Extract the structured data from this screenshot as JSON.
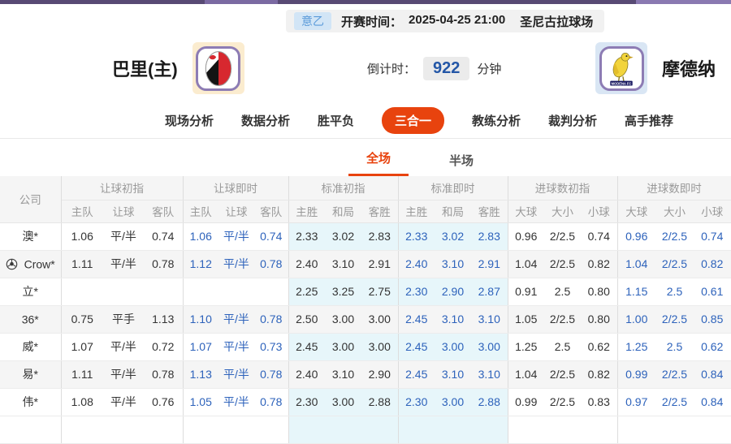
{
  "top": {
    "league": "意乙",
    "kickoff_label": "开赛时间：",
    "kickoff_time": "2025-04-25 21:00",
    "venue": "圣尼古拉球场"
  },
  "match": {
    "home_name": "巴里(主)",
    "away_name": "摩德纳",
    "countdown_label": "倒计时：",
    "countdown_value": "922",
    "countdown_unit": "分钟"
  },
  "nav": {
    "items": [
      {
        "label": "现场分析",
        "active": false
      },
      {
        "label": "数据分析",
        "active": false
      },
      {
        "label": "胜平负",
        "active": false
      },
      {
        "label": "三合一",
        "active": true
      },
      {
        "label": "教练分析",
        "active": false
      },
      {
        "label": "裁判分析",
        "active": false
      },
      {
        "label": "高手推荐",
        "active": false
      }
    ]
  },
  "subtabs": {
    "items": [
      {
        "label": "全场",
        "active": true
      },
      {
        "label": "半场",
        "active": false
      }
    ]
  },
  "table": {
    "company_header": "公司",
    "groups": [
      {
        "label": "让球初指",
        "cols": [
          "主队",
          "让球",
          "客队"
        ]
      },
      {
        "label": "让球即时",
        "cols": [
          "主队",
          "让球",
          "客队"
        ]
      },
      {
        "label": "标准初指",
        "cols": [
          "主胜",
          "和局",
          "客胜"
        ]
      },
      {
        "label": "标准即时",
        "cols": [
          "主胜",
          "和局",
          "客胜"
        ]
      },
      {
        "label": "进球数初指",
        "cols": [
          "大球",
          "大小",
          "小球"
        ]
      },
      {
        "label": "进球数即时",
        "cols": [
          "大球",
          "大小",
          "小球"
        ]
      }
    ],
    "rows": [
      {
        "company": "澳*",
        "has_ball_icon": false,
        "cells": [
          [
            "1.06",
            "平/半",
            "0.74"
          ],
          [
            "1.06",
            "平/半",
            "0.74"
          ],
          [
            "2.33",
            "3.02",
            "2.83"
          ],
          [
            "2.33",
            "3.02",
            "2.83"
          ],
          [
            "0.96",
            "2/2.5",
            "0.74"
          ],
          [
            "0.96",
            "2/2.5",
            "0.74"
          ]
        ]
      },
      {
        "company": "Crow*",
        "has_ball_icon": true,
        "cells": [
          [
            "1.11",
            "平/半",
            "0.78"
          ],
          [
            "1.12",
            "平/半",
            "0.78"
          ],
          [
            "2.40",
            "3.10",
            "2.91"
          ],
          [
            "2.40",
            "3.10",
            "2.91"
          ],
          [
            "1.04",
            "2/2.5",
            "0.82"
          ],
          [
            "1.04",
            "2/2.5",
            "0.82"
          ]
        ]
      },
      {
        "company": "立*",
        "has_ball_icon": false,
        "cells": [
          [
            "",
            "",
            ""
          ],
          [
            "",
            "",
            ""
          ],
          [
            "2.25",
            "3.25",
            "2.75"
          ],
          [
            "2.30",
            "2.90",
            "2.87"
          ],
          [
            "0.91",
            "2.5",
            "0.80"
          ],
          [
            "1.15",
            "2.5",
            "0.61"
          ]
        ]
      },
      {
        "company": "36*",
        "has_ball_icon": false,
        "cells": [
          [
            "0.75",
            "平手",
            "1.13"
          ],
          [
            "1.10",
            "平/半",
            "0.78"
          ],
          [
            "2.50",
            "3.00",
            "3.00"
          ],
          [
            "2.45",
            "3.10",
            "3.10"
          ],
          [
            "1.05",
            "2/2.5",
            "0.80"
          ],
          [
            "1.00",
            "2/2.5",
            "0.85"
          ]
        ]
      },
      {
        "company": "威*",
        "has_ball_icon": false,
        "cells": [
          [
            "1.07",
            "平/半",
            "0.72"
          ],
          [
            "1.07",
            "平/半",
            "0.73"
          ],
          [
            "2.45",
            "3.00",
            "3.00"
          ],
          [
            "2.45",
            "3.00",
            "3.00"
          ],
          [
            "1.25",
            "2.5",
            "0.62"
          ],
          [
            "1.25",
            "2.5",
            "0.62"
          ]
        ]
      },
      {
        "company": "易*",
        "has_ball_icon": false,
        "cells": [
          [
            "1.11",
            "平/半",
            "0.78"
          ],
          [
            "1.13",
            "平/半",
            "0.78"
          ],
          [
            "2.40",
            "3.10",
            "2.90"
          ],
          [
            "2.45",
            "3.10",
            "3.10"
          ],
          [
            "1.04",
            "2/2.5",
            "0.82"
          ],
          [
            "0.99",
            "2/2.5",
            "0.84"
          ]
        ]
      },
      {
        "company": "伟*",
        "has_ball_icon": false,
        "cells": [
          [
            "1.08",
            "平/半",
            "0.76"
          ],
          [
            "1.05",
            "平/半",
            "0.78"
          ],
          [
            "2.30",
            "3.00",
            "2.88"
          ],
          [
            "2.30",
            "3.00",
            "2.88"
          ],
          [
            "0.99",
            "2/2.5",
            "0.83"
          ],
          [
            "0.97",
            "2/2.5",
            "0.84"
          ]
        ]
      }
    ]
  },
  "colors": {
    "accent": "#e8430e",
    "live_text": "#2d62bb",
    "standard_bg": "#e7f6fa",
    "purple_bar": "#584a74"
  }
}
